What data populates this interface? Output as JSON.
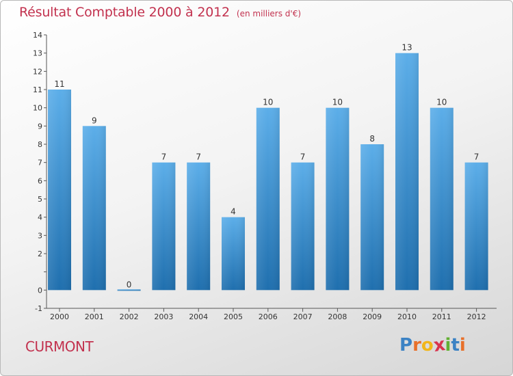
{
  "title": "Résultat Comptable 2000 à 2012",
  "subtitle": "(en milliers d'€)",
  "location": "CURMONT",
  "logo": {
    "text": "Proxiti",
    "letters": [
      "P",
      "r",
      "o",
      "x",
      "i",
      "t",
      "i"
    ],
    "colors": [
      "#3b82c4",
      "#e8702a",
      "#f2b619",
      "#d8344e",
      "#62b033",
      "#3b82c4",
      "#e8702a"
    ]
  },
  "colors": {
    "title": "#c2314e",
    "bar_light": "#5caee9",
    "bar_dark": "#1f6fae",
    "axis": "#555555",
    "text": "#333333"
  },
  "chart_data": {
    "type": "bar",
    "title": "Résultat Comptable 2000 à 2012",
    "subtitle": "(en milliers d'€)",
    "categories": [
      "2000",
      "2001",
      "2002",
      "2003",
      "2004",
      "2005",
      "2006",
      "2007",
      "2008",
      "2009",
      "2010",
      "2011",
      "2012"
    ],
    "values": [
      11,
      9,
      0,
      7,
      7,
      4,
      10,
      7,
      10,
      8,
      13,
      10,
      7
    ],
    "ylim": [
      -1,
      14
    ],
    "yticks": [
      -1,
      0,
      1,
      2,
      3,
      4,
      5,
      6,
      7,
      8,
      9,
      10,
      11,
      12,
      13,
      14
    ],
    "ytick_labels": [
      "-1",
      "0",
      "",
      "2",
      "3",
      "4",
      "5",
      "6",
      "7",
      "8",
      "9",
      "10",
      "11",
      "12",
      "13",
      "14"
    ],
    "grid": false,
    "legend": "none"
  }
}
